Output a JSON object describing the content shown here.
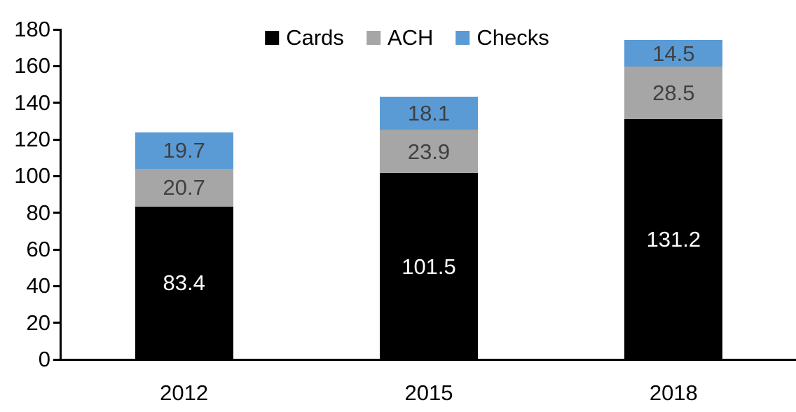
{
  "chart_data": {
    "type": "bar",
    "stacked": true,
    "title": "",
    "xlabel": "",
    "ylabel": "",
    "categories": [
      "2012",
      "2015",
      "2018"
    ],
    "series": [
      {
        "name": "Cards",
        "color": "#000000",
        "label_color": "#ffffff",
        "values": [
          83.4,
          101.5,
          131.2
        ]
      },
      {
        "name": "ACH",
        "color": "#a6a6a6",
        "label_color": "#404040",
        "values": [
          20.7,
          23.9,
          28.5
        ]
      },
      {
        "name": "Checks",
        "color": "#5b9bd5",
        "label_color": "#404040",
        "values": [
          19.7,
          18.1,
          14.5
        ]
      }
    ],
    "ylim": [
      0,
      180
    ],
    "ytick_step": 20,
    "ytick_labels": [
      "0",
      "20",
      "40",
      "60",
      "80",
      "100",
      "120",
      "140",
      "160",
      "180"
    ],
    "grid": false,
    "legend_position": "top",
    "value_labels_shown": true,
    "axis_color": "#000000",
    "background_color": "#ffffff"
  }
}
